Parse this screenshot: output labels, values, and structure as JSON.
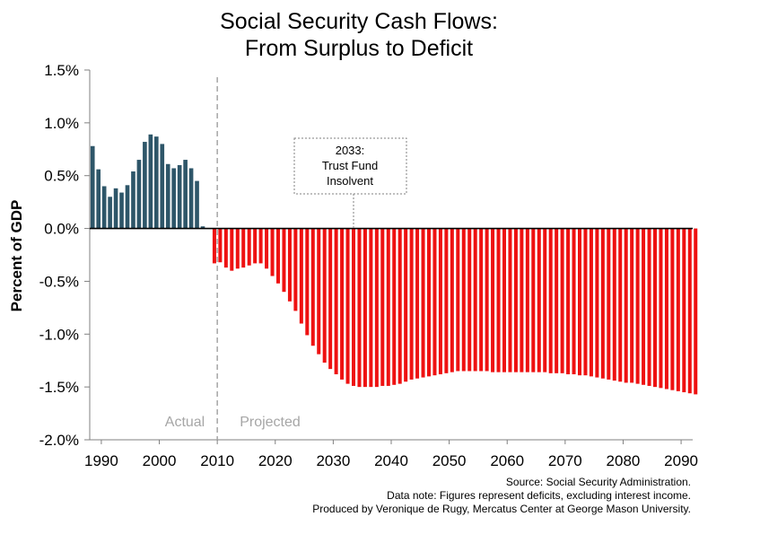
{
  "chart_data": {
    "type": "bar",
    "title_lines": [
      "Social Security Cash Flows:",
      "From Surplus to Deficit"
    ],
    "ylabel": "Percent of GDP",
    "xlabel": "",
    "ylim": [
      -2.0,
      1.5
    ],
    "xlim": [
      1988,
      2092
    ],
    "yticks": [
      {
        "value": 1.5,
        "label": "1.5%"
      },
      {
        "value": 1.0,
        "label": "1.0%"
      },
      {
        "value": 0.5,
        "label": "0.5%"
      },
      {
        "value": 0.0,
        "label": "0.0%"
      },
      {
        "value": -0.5,
        "label": "-0.5%"
      },
      {
        "value": -1.0,
        "label": "-1.0%"
      },
      {
        "value": -1.5,
        "label": "-1.5%"
      },
      {
        "value": -2.0,
        "label": "-2.0%"
      }
    ],
    "xticks": [
      {
        "value": 1990,
        "label": "1990"
      },
      {
        "value": 2000,
        "label": "2000"
      },
      {
        "value": 2010,
        "label": "2010"
      },
      {
        "value": 2020,
        "label": "2020"
      },
      {
        "value": 2030,
        "label": "2030"
      },
      {
        "value": 2040,
        "label": "2040"
      },
      {
        "value": 2050,
        "label": "2050"
      },
      {
        "value": 2060,
        "label": "2060"
      },
      {
        "value": 2070,
        "label": "2070"
      },
      {
        "value": 2080,
        "label": "2080"
      },
      {
        "value": 2090,
        "label": "2090"
      }
    ],
    "colors": {
      "actual": "#2e5669",
      "projected": "#ee1111",
      "divider": "#a6a6a6",
      "region_label": "#a6a6a6"
    },
    "divider_year": 2009.5,
    "region_labels": {
      "actual": "Actual",
      "projected": "Projected"
    },
    "annotation": {
      "lines": [
        "2033:",
        "Trust Fund",
        "Insolvent"
      ],
      "year": 2033
    },
    "grid": false,
    "legend": "none",
    "series": [
      {
        "kind": "actual",
        "start_year": 1988,
        "values": [
          0.78,
          0.56,
          0.4,
          0.3,
          0.38,
          0.34,
          0.41,
          0.54,
          0.65,
          0.82,
          0.89,
          0.87,
          0.8,
          0.61,
          0.57,
          0.6,
          0.65,
          0.57,
          0.45,
          0.02
        ]
      },
      {
        "kind": "projected",
        "start_year": 2009,
        "values": [
          -0.33,
          -0.32,
          -0.37,
          -0.4,
          -0.38,
          -0.37,
          -0.35,
          -0.33,
          -0.33,
          -0.38,
          -0.45,
          -0.52,
          -0.6,
          -0.69,
          -0.78,
          -0.9,
          -1.01,
          -1.11,
          -1.19,
          -1.27,
          -1.33,
          -1.38,
          -1.43,
          -1.47,
          -1.49,
          -1.5,
          -1.5,
          -1.5,
          -1.5,
          -1.49,
          -1.49,
          -1.48,
          -1.47,
          -1.45,
          -1.43,
          -1.42,
          -1.41,
          -1.4,
          -1.39,
          -1.38,
          -1.37,
          -1.36,
          -1.35,
          -1.35,
          -1.35,
          -1.35,
          -1.35,
          -1.35,
          -1.36,
          -1.36,
          -1.36,
          -1.36,
          -1.36,
          -1.36,
          -1.36,
          -1.36,
          -1.36,
          -1.36,
          -1.37,
          -1.37,
          -1.37,
          -1.38,
          -1.38,
          -1.39,
          -1.39,
          -1.4,
          -1.41,
          -1.42,
          -1.43,
          -1.44,
          -1.45,
          -1.46,
          -1.46,
          -1.47,
          -1.48,
          -1.49,
          -1.5,
          -1.51,
          -1.52,
          -1.53,
          -1.54,
          -1.55,
          -1.56,
          -1.57
        ]
      }
    ]
  },
  "footer": {
    "source": "Source: Social Security Administration.",
    "data_note": "Data note: Figures represent deficits, excluding interest income.",
    "produced_by": "Produced by Veronique de Rugy, Mercatus Center at George Mason University."
  }
}
